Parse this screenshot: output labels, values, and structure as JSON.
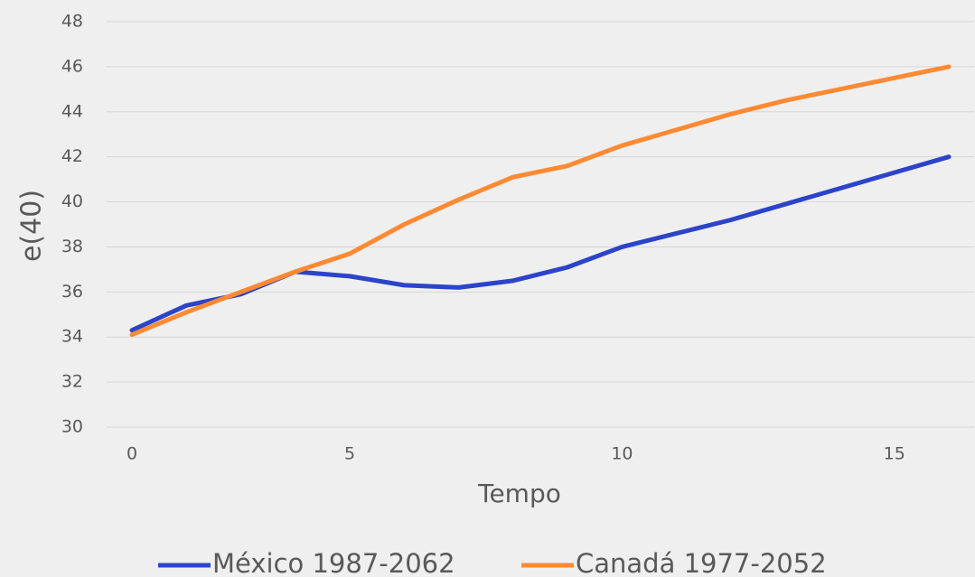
{
  "chart_data": {
    "type": "line",
    "x_label": "Tempo",
    "y_label": "e(40)",
    "categories": [
      "0",
      null,
      null,
      null,
      "5",
      null,
      null,
      null,
      null,
      "10",
      null,
      null,
      null,
      null,
      "15",
      null
    ],
    "series": [
      {
        "name": "México 1987-2062",
        "color": "#2b44c9",
        "values": [
          34.3,
          35.4,
          35.9,
          36.9,
          36.7,
          36.3,
          36.2,
          36.5,
          37.1,
          38.0,
          38.6,
          39.2,
          39.9,
          40.6,
          41.3,
          42.0
        ]
      },
      {
        "name": "Canadá 1977-2052",
        "color": "#ff8a33",
        "values": [
          34.1,
          35.1,
          36.0,
          36.9,
          37.7,
          39.0,
          40.1,
          41.1,
          41.6,
          42.5,
          43.2,
          43.9,
          44.5,
          45.0,
          45.5,
          46.0
        ]
      }
    ],
    "ylim": [
      30,
      48
    ],
    "yticks": [
      30,
      32,
      34,
      36,
      38,
      40,
      42,
      44,
      46,
      48
    ],
    "grid": true,
    "legend": "bottom"
  }
}
